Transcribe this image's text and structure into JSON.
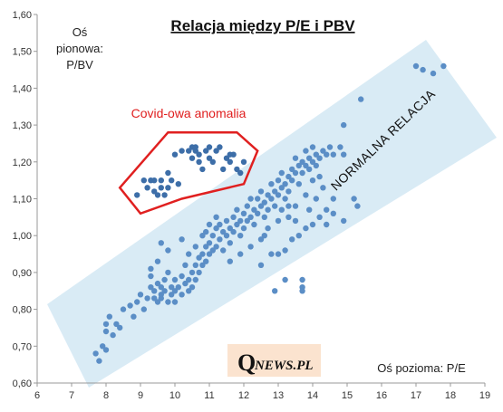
{
  "colors": {
    "point": "#5b8ec6",
    "point_dark": "#3d6ea8",
    "band": "#cfe6f2",
    "covid_outline": "#e02020",
    "axis": "#999999",
    "logo_bg": "#fbe3cf"
  },
  "chart_data": {
    "type": "scatter",
    "title": "Relacja między P/E i PBV",
    "ylabel_lines": [
      "Oś",
      "pionowa:",
      "P/BV"
    ],
    "xlabel": "Oś pozioma: P/E",
    "xlim": [
      6,
      19
    ],
    "ylim": [
      0.6,
      1.6
    ],
    "x_ticks": [
      "6",
      "7",
      "8",
      "9",
      "10",
      "11",
      "12",
      "13",
      "14",
      "15",
      "16",
      "17",
      "18",
      "19"
    ],
    "y_ticks": [
      "0,60",
      "0,70",
      "0,80",
      "0,90",
      "1,00",
      "1,10",
      "1,20",
      "1,30",
      "1,40",
      "1,50",
      "1,60"
    ],
    "grid": false,
    "annotations": {
      "band_label": "NORMALNA RELACJA",
      "covid_label": "Covid-owa anomalia"
    },
    "covid_region": {
      "outline": [
        [
          8.4,
          1.13
        ],
        [
          9.8,
          1.28
        ],
        [
          11.8,
          1.28
        ],
        [
          12.4,
          1.23
        ],
        [
          12.0,
          1.14
        ],
        [
          10.2,
          1.1
        ],
        [
          9.0,
          1.06
        ]
      ],
      "points": [
        [
          8.9,
          1.11
        ],
        [
          9.1,
          1.15
        ],
        [
          9.2,
          1.13
        ],
        [
          9.3,
          1.15
        ],
        [
          9.4,
          1.12
        ],
        [
          9.4,
          1.15
        ],
        [
          9.5,
          1.11
        ],
        [
          9.6,
          1.13
        ],
        [
          9.6,
          1.15
        ],
        [
          9.7,
          1.11
        ],
        [
          9.8,
          1.13
        ],
        [
          9.8,
          1.17
        ],
        [
          9.9,
          1.15
        ],
        [
          10.1,
          1.14
        ],
        [
          10.0,
          1.22
        ],
        [
          10.2,
          1.23
        ],
        [
          10.4,
          1.23
        ],
        [
          10.5,
          1.24
        ],
        [
          10.5,
          1.21
        ],
        [
          10.6,
          1.23
        ],
        [
          10.7,
          1.2
        ],
        [
          10.8,
          1.18
        ],
        [
          10.9,
          1.23
        ],
        [
          11.0,
          1.24
        ],
        [
          11.0,
          1.21
        ],
        [
          11.1,
          1.2
        ],
        [
          11.2,
          1.23
        ],
        [
          11.3,
          1.24
        ],
        [
          11.4,
          1.18
        ],
        [
          11.5,
          1.21
        ],
        [
          11.6,
          1.2
        ],
        [
          11.7,
          1.22
        ],
        [
          11.8,
          1.18
        ],
        [
          11.9,
          1.17
        ],
        [
          12.0,
          1.2
        ],
        [
          10.6,
          1.24
        ],
        [
          10.7,
          1.22
        ],
        [
          11.6,
          1.22
        ]
      ]
    },
    "series": [
      {
        "points": [
          [
            7.7,
            0.68
          ],
          [
            7.8,
            0.66
          ],
          [
            7.9,
            0.7
          ],
          [
            8.0,
            0.69
          ],
          [
            8.0,
            0.74
          ],
          [
            8.0,
            0.76
          ],
          [
            8.1,
            0.78
          ],
          [
            8.2,
            0.73
          ],
          [
            8.3,
            0.76
          ],
          [
            8.4,
            0.75
          ],
          [
            8.5,
            0.8
          ],
          [
            8.7,
            0.81
          ],
          [
            8.8,
            0.78
          ],
          [
            8.9,
            0.82
          ],
          [
            9.0,
            0.84
          ],
          [
            9.1,
            0.8
          ],
          [
            9.2,
            0.83
          ],
          [
            9.3,
            0.86
          ],
          [
            9.3,
            0.89
          ],
          [
            9.4,
            0.83
          ],
          [
            9.4,
            0.85
          ],
          [
            9.5,
            0.82
          ],
          [
            9.5,
            0.87
          ],
          [
            9.6,
            0.84
          ],
          [
            9.6,
            0.86
          ],
          [
            9.6,
            0.83
          ],
          [
            9.7,
            0.88
          ],
          [
            9.7,
            0.85
          ],
          [
            9.8,
            0.82
          ],
          [
            9.8,
            0.9
          ],
          [
            9.9,
            0.86
          ],
          [
            9.9,
            0.84
          ],
          [
            10.0,
            0.88
          ],
          [
            10.0,
            0.85
          ],
          [
            10.0,
            0.82
          ],
          [
            10.1,
            0.86
          ],
          [
            10.2,
            0.89
          ],
          [
            10.2,
            0.84
          ],
          [
            10.3,
            0.87
          ],
          [
            10.3,
            0.92
          ],
          [
            10.4,
            0.85
          ],
          [
            10.4,
            0.88
          ],
          [
            10.5,
            0.9
          ],
          [
            10.5,
            0.86
          ],
          [
            10.6,
            0.88
          ],
          [
            10.6,
            0.92
          ],
          [
            10.7,
            0.94
          ],
          [
            10.7,
            0.9
          ],
          [
            10.8,
            0.95
          ],
          [
            10.8,
            0.92
          ],
          [
            10.9,
            0.97
          ],
          [
            10.9,
            0.93
          ],
          [
            11.0,
            0.95
          ],
          [
            11.0,
            0.98
          ],
          [
            11.1,
            0.96
          ],
          [
            11.1,
            1.0
          ],
          [
            11.2,
            0.97
          ],
          [
            11.2,
            1.02
          ],
          [
            11.3,
            0.99
          ],
          [
            11.3,
            1.03
          ],
          [
            11.4,
            1.01
          ],
          [
            11.4,
            0.96
          ],
          [
            11.5,
            1.0
          ],
          [
            11.5,
            1.04
          ],
          [
            11.6,
            1.02
          ],
          [
            11.6,
            0.98
          ],
          [
            11.7,
            1.01
          ],
          [
            11.7,
            1.05
          ],
          [
            11.8,
            1.03
          ],
          [
            11.8,
            1.07
          ],
          [
            11.9,
            1.04
          ],
          [
            11.9,
            1.0
          ],
          [
            12.0,
            1.02
          ],
          [
            12.0,
            1.06
          ],
          [
            12.1,
            1.04
          ],
          [
            12.1,
            1.08
          ],
          [
            12.2,
            1.05
          ],
          [
            12.2,
            1.1
          ],
          [
            12.3,
            1.07
          ],
          [
            12.3,
            1.03
          ],
          [
            12.4,
            1.06
          ],
          [
            12.4,
            1.1
          ],
          [
            12.5,
            1.08
          ],
          [
            12.5,
            1.12
          ],
          [
            12.6,
            1.09
          ],
          [
            12.6,
            1.05
          ],
          [
            12.7,
            1.11
          ],
          [
            12.7,
            1.07
          ],
          [
            12.8,
            1.1
          ],
          [
            12.8,
            1.14
          ],
          [
            12.9,
            1.12
          ],
          [
            12.9,
            1.08
          ],
          [
            13.0,
            1.11
          ],
          [
            13.0,
            1.15
          ],
          [
            13.1,
            1.13
          ],
          [
            13.1,
            1.17
          ],
          [
            13.2,
            1.14
          ],
          [
            13.2,
            1.1
          ],
          [
            13.3,
            1.16
          ],
          [
            13.3,
            1.12
          ],
          [
            13.4,
            1.18
          ],
          [
            13.4,
            1.15
          ],
          [
            13.5,
            1.17
          ],
          [
            13.5,
            1.21
          ],
          [
            13.6,
            1.19
          ],
          [
            13.6,
            1.14
          ],
          [
            13.7,
            1.2
          ],
          [
            13.7,
            1.17
          ],
          [
            13.8,
            1.19
          ],
          [
            13.8,
            1.23
          ],
          [
            13.9,
            1.21
          ],
          [
            13.9,
            1.18
          ],
          [
            14.0,
            1.2
          ],
          [
            14.0,
            1.24
          ],
          [
            14.1,
            1.22
          ],
          [
            14.1,
            1.19
          ],
          [
            14.2,
            1.21
          ],
          [
            14.3,
            1.23
          ],
          [
            14.4,
            1.22
          ],
          [
            14.5,
            1.24
          ],
          [
            14.6,
            1.22
          ],
          [
            14.8,
            1.24
          ],
          [
            14.9,
            1.22
          ],
          [
            14.2,
            1.16
          ],
          [
            14.0,
            1.15
          ],
          [
            13.8,
            1.11
          ],
          [
            14.3,
            1.13
          ],
          [
            14.1,
            1.1
          ],
          [
            12.9,
            0.85
          ],
          [
            13.2,
            0.88
          ],
          [
            13.7,
            0.86
          ],
          [
            13.7,
            0.88
          ],
          [
            13.7,
            0.85
          ],
          [
            12.5,
            0.92
          ],
          [
            12.8,
            0.95
          ],
          [
            13.0,
            0.95
          ],
          [
            13.2,
            0.96
          ],
          [
            13.4,
            0.99
          ],
          [
            13.6,
            1.0
          ],
          [
            13.8,
            1.02
          ],
          [
            13.3,
            1.05
          ],
          [
            13.5,
            1.04
          ],
          [
            14.0,
            1.03
          ],
          [
            14.2,
            1.05
          ],
          [
            14.4,
            1.07
          ],
          [
            14.6,
            1.06
          ],
          [
            14.9,
            1.04
          ],
          [
            15.2,
            1.1
          ],
          [
            15.3,
            1.08
          ],
          [
            15.4,
            1.37
          ],
          [
            14.9,
            1.3
          ],
          [
            14.6,
            1.1
          ],
          [
            11.0,
            1.03
          ],
          [
            11.2,
            1.05
          ],
          [
            10.9,
            1.01
          ],
          [
            10.6,
            0.97
          ],
          [
            10.4,
            0.95
          ],
          [
            9.8,
            0.96
          ],
          [
            9.5,
            0.93
          ],
          [
            9.3,
            0.91
          ],
          [
            9.6,
            0.98
          ],
          [
            10.2,
            0.99
          ],
          [
            10.8,
            1.0
          ],
          [
            11.6,
            0.93
          ],
          [
            11.9,
            0.95
          ],
          [
            12.2,
            0.97
          ],
          [
            12.5,
            0.99
          ],
          [
            12.6,
            1.0
          ],
          [
            12.7,
            1.02
          ],
          [
            13.0,
            1.04
          ],
          [
            13.1,
            1.07
          ],
          [
            13.3,
            1.08
          ],
          [
            17.0,
            1.46
          ],
          [
            17.5,
            1.44
          ],
          [
            17.8,
            1.46
          ],
          [
            17.2,
            1.45
          ],
          [
            13.5,
            1.08
          ],
          [
            13.9,
            1.07
          ],
          [
            14.4,
            1.03
          ]
        ]
      }
    ]
  },
  "logo": {
    "q": "Q",
    "rest": "NEWS.PL"
  }
}
